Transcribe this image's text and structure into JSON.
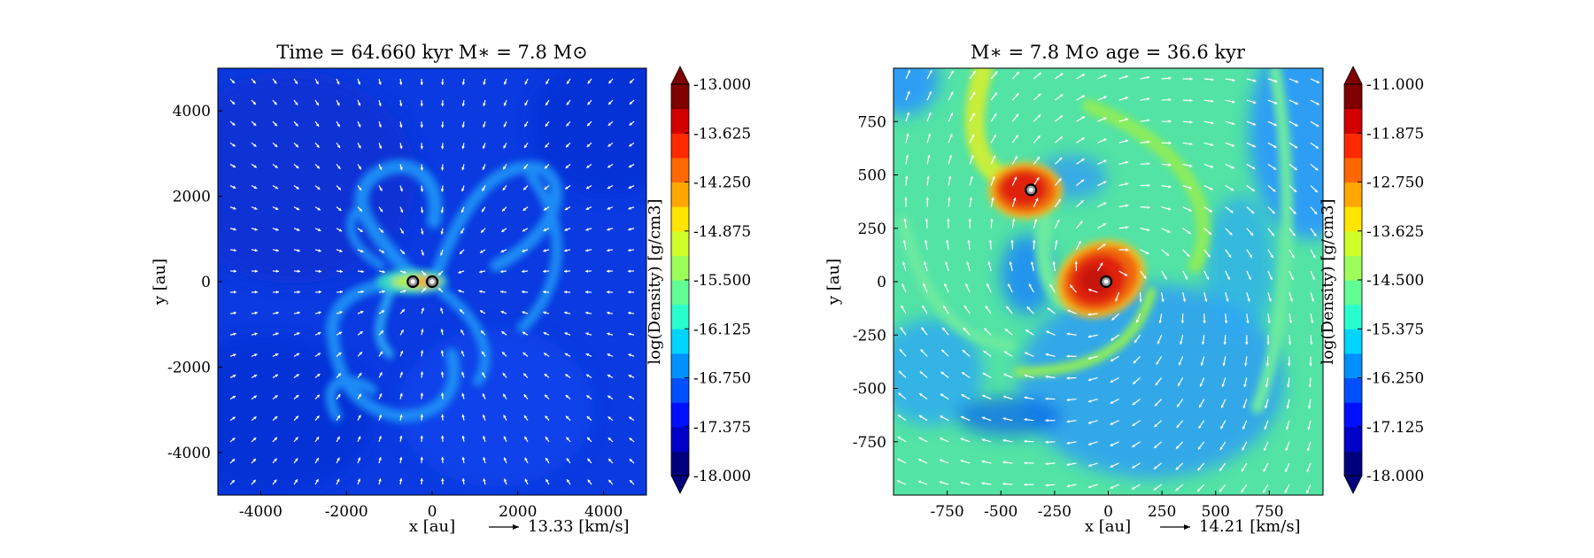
{
  "chart_data": [
    {
      "type": "heatmap",
      "panel": "left",
      "title": "Time = 64.660 kyr    M$_*$ = 7.8 M$_\\odot$",
      "title_display": "Time = 64.660 kyr    M∗ = 7.8 M⊙",
      "xlabel": "x [au]",
      "ylabel": "y [au]",
      "xlim": [
        -5000,
        5000
      ],
      "ylim": [
        -5000,
        5000
      ],
      "xticks": [
        -4000,
        -2000,
        0,
        2000,
        4000
      ],
      "yticks": [
        -4000,
        -2000,
        0,
        2000,
        4000
      ],
      "colorbar_label": "log(Density) [g/cm3]",
      "colorbar_range": [
        -18.0,
        -13.0
      ],
      "colorbar_ticks": [
        "-13.000",
        "-13.625",
        "-14.250",
        "-14.875",
        "-15.500",
        "-16.125",
        "-16.750",
        "-17.375",
        "-18.000"
      ],
      "velocity_key": "13.33 [km/s]",
      "sink_particles": [
        [
          -450,
          0
        ],
        [
          0,
          0
        ]
      ],
      "background_log_density": -17.4,
      "grid": false
    },
    {
      "type": "heatmap",
      "panel": "right",
      "title": "M$_*$ = 7.8 M$_\\odot$       age = 36.6 kyr",
      "title_display": "M∗ = 7.8 M⊙          age = 36.6 kyr",
      "xlabel": "x [au]",
      "ylabel": "y [au]",
      "xlim": [
        -1000,
        1000
      ],
      "ylim": [
        -1000,
        1000
      ],
      "xticks": [
        -750,
        -500,
        -250,
        0,
        250,
        500,
        750
      ],
      "yticks": [
        -750,
        -500,
        -250,
        0,
        250,
        500,
        750
      ],
      "colorbar_label": "log(Density) [g/cm3]",
      "colorbar_range": [
        -18.0,
        -11.0
      ],
      "colorbar_ticks": [
        "-11.000",
        "-11.875",
        "-12.750",
        "-13.625",
        "-14.500",
        "-15.375",
        "-16.250",
        "-17.125",
        "-18.000"
      ],
      "velocity_key": "14.21 [km/s]",
      "sink_particles": [
        [
          -360,
          430
        ],
        [
          -10,
          0
        ]
      ],
      "background_log_density": -14.8,
      "grid": false
    }
  ]
}
